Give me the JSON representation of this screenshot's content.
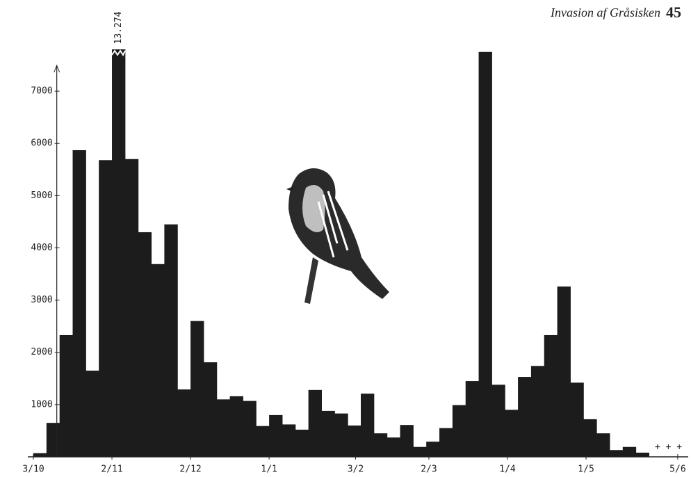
{
  "header": {
    "title": "Invasion af Gråsisken",
    "page": "45"
  },
  "chart_data": {
    "type": "histogram",
    "bins": [
      0,
      5,
      10,
      15,
      20,
      25,
      30,
      35,
      40,
      45,
      50,
      55,
      60,
      65,
      70,
      75,
      80,
      85,
      90,
      95,
      100,
      105,
      110,
      115,
      120,
      125,
      130,
      135,
      140,
      145,
      150,
      155,
      160,
      165,
      170,
      175,
      180,
      185,
      190,
      195,
      200,
      205,
      210,
      215,
      220,
      225,
      230,
      235
    ],
    "values": [
      70,
      650,
      2330,
      5870,
      1650,
      5680,
      13274,
      5700,
      4300,
      3690,
      4450,
      1290,
      2600,
      1810,
      1100,
      1160,
      1070,
      590,
      800,
      620,
      520,
      1280,
      880,
      830,
      600,
      1210,
      450,
      370,
      610,
      190,
      290,
      550,
      990,
      1450,
      7750,
      1380,
      900,
      1530,
      1740,
      2330,
      3260,
      1420,
      720,
      450,
      130,
      190,
      80
    ],
    "value_labels": [
      null,
      null,
      null,
      null,
      null,
      null,
      "13.274",
      null,
      null,
      null,
      null,
      null,
      null,
      null,
      null,
      null,
      null,
      null,
      null,
      null,
      null,
      null,
      null,
      null,
      null,
      null,
      null,
      null,
      null,
      null,
      null,
      null,
      null,
      null,
      null,
      null,
      null,
      null,
      null,
      null,
      null,
      null,
      null,
      null,
      null,
      null,
      null
    ],
    "color": "#1c1c1c",
    "xlim": [
      0,
      250
    ],
    "xticks": [
      {
        "value": 0,
        "label": "3/10"
      },
      {
        "value": 30,
        "label": "2/11"
      },
      {
        "value": 60,
        "label": "2/12"
      },
      {
        "value": 90,
        "label": "1/1"
      },
      {
        "value": 123,
        "label": "3/2"
      },
      {
        "value": 151,
        "label": "2/3"
      },
      {
        "value": 181,
        "label": "1/4"
      },
      {
        "value": 211,
        "label": "1/5"
      },
      {
        "value": 246,
        "label": "5/6"
      }
    ],
    "ylim": [
      0,
      7800
    ],
    "yticks": [
      1000,
      2000,
      3000,
      4000,
      5000,
      6000,
      7000
    ],
    "annotation": "+ + +"
  }
}
